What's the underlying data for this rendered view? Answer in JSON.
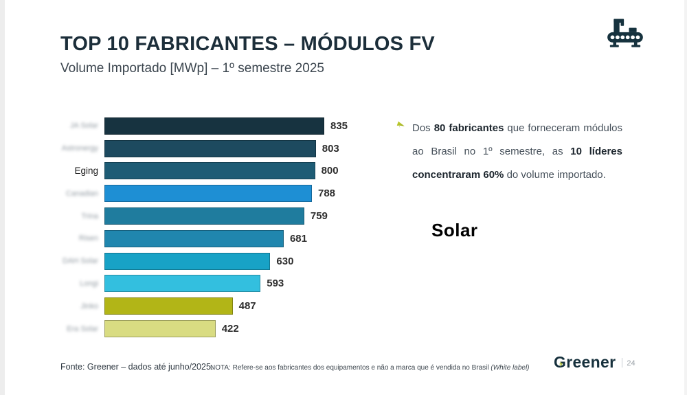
{
  "slide": {
    "title": "TOP 10 FABRICANTES – MÓDULOS FV",
    "subtitle": "Volume Importado [MWp] – 1º semestre 2025",
    "watermark": "Solar",
    "footer": {
      "source": "Fonte: Greener – dados até junho/2025.",
      "note_prefix": "NOTA: Refere-se aos fabricantes dos equipamentos e não a marca que é vendida no Brasil ",
      "note_italic": "(White label)"
    },
    "brand": {
      "name": "Greener",
      "page_number": "24"
    },
    "icons": {
      "header": "factory-conveyor-icon",
      "bullet": "arrow-cursor-icon"
    },
    "colors": {
      "title": "#1c2e3a",
      "accent_green": "#9fae1e",
      "icon_navy": "#16323e"
    }
  },
  "annotation": {
    "segments": [
      {
        "text": "Dos ",
        "bold": false
      },
      {
        "text": "80 fabricantes",
        "bold": true
      },
      {
        "text": " que forneceram módulos ao Brasil no 1º semestre, as ",
        "bold": false
      },
      {
        "text": "10 líderes concentraram 60%",
        "bold": true
      },
      {
        "text": " do volume importado.",
        "bold": false
      }
    ]
  },
  "chart_data": {
    "type": "bar",
    "orientation": "horizontal",
    "title": "TOP 10 FABRICANTES – MÓDULOS FV",
    "xlabel": "",
    "ylabel": "",
    "unit": "MWp",
    "xlim": [
      0,
      900
    ],
    "grid": false,
    "value_labels": true,
    "categories": [
      "JA Solar",
      "Astronergy",
      "Eging",
      "Canadian",
      "Trina",
      "Risen",
      "DAH Solar",
      "Longi",
      "Jinko",
      "Era Solar"
    ],
    "values": [
      835,
      803,
      800,
      788,
      759,
      681,
      630,
      593,
      487,
      422
    ],
    "label_blurred": [
      true,
      true,
      false,
      true,
      true,
      true,
      true,
      true,
      true,
      true
    ],
    "bar_colors": [
      "#173340",
      "#1d4a5f",
      "#1e5c75",
      "#1e8fd4",
      "#1f7c9e",
      "#2086ae",
      "#18a2c6",
      "#33bfdf",
      "#b2b517",
      "#d9dc82"
    ]
  }
}
